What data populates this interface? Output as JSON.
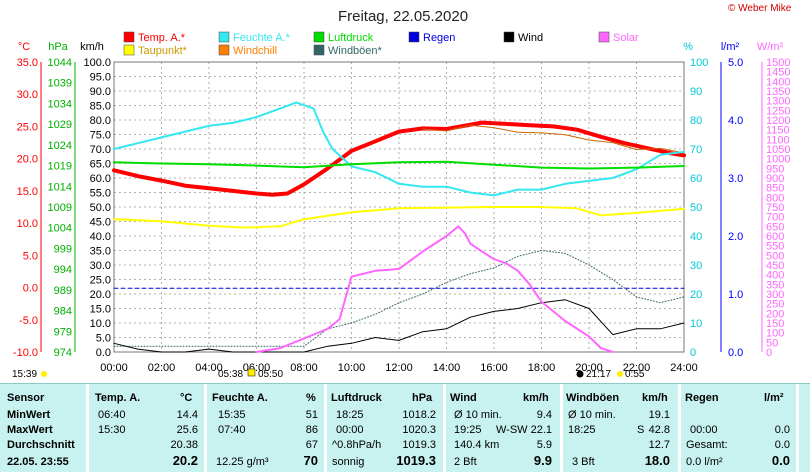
{
  "credit": "© Weber Mike",
  "chart_data": {
    "type": "line",
    "title": "Freitag, 22.05.2020",
    "x_range": [
      0,
      24
    ],
    "x_ticks": [
      "00:00",
      "02:00",
      "04:00",
      "06:00",
      "08:00",
      "10:00",
      "12:00",
      "14:00",
      "16:00",
      "18:00",
      "20:00",
      "22:00",
      "24:00"
    ],
    "axes": {
      "temp": {
        "unit": "°C",
        "range": [
          -10,
          35
        ],
        "ticks": [
          "35.0",
          "30.0",
          "25.0",
          "20.0",
          "15.0",
          "10.0",
          "5.0",
          "0.0",
          "-5.0",
          "-10.0"
        ],
        "color": "#ff0000"
      },
      "pressure": {
        "unit": "hPa",
        "range": [
          974,
          1044
        ],
        "ticks": [
          "1044",
          "1039",
          "1034",
          "1029",
          "1024",
          "1019",
          "1014",
          "1009",
          "1004",
          "999",
          "994",
          "989",
          "984",
          "979",
          "974"
        ],
        "color": "#00b000"
      },
      "speed": {
        "unit": "km/h",
        "range": [
          0,
          100
        ],
        "ticks": [
          "100.0",
          "95.0",
          "90.0",
          "85.0",
          "80.0",
          "75.0",
          "70.0",
          "65.0",
          "60.0",
          "55.0",
          "50.0",
          "45.0",
          "40.0",
          "35.0",
          "30.0",
          "25.0",
          "20.0",
          "15.0",
          "10.0",
          "5.0",
          "0.0"
        ],
        "color": "#000000"
      },
      "humidity": {
        "unit": "%",
        "range": [
          0,
          100
        ],
        "ticks": [
          "100",
          "90",
          "80",
          "70",
          "60",
          "50",
          "40",
          "30",
          "20",
          "10",
          "0"
        ],
        "color": "#00c8d8"
      },
      "rain": {
        "unit": "l/m²",
        "range": [
          0,
          5
        ],
        "ticks": [
          "5.0",
          "4.0",
          "3.0",
          "2.0",
          "1.0",
          "0.0"
        ],
        "color": "#0000ff"
      },
      "solar": {
        "unit": "W/m²",
        "range": [
          0,
          1500
        ],
        "ticks": [
          "1500",
          "1450",
          "1400",
          "1350",
          "1300",
          "1250",
          "1200",
          "1150",
          "1100",
          "1050",
          "1000",
          "950",
          "900",
          "850",
          "800",
          "750",
          "700",
          "650",
          "600",
          "550",
          "500",
          "450",
          "400",
          "350",
          "300",
          "250",
          "200",
          "150",
          "100",
          "50",
          "0"
        ],
        "color": "#ff66ff"
      }
    },
    "legend": [
      {
        "name": "Temp. A.*",
        "color": "#ff0000"
      },
      {
        "name": "Feuchte A.*",
        "color": "#33e8f0"
      },
      {
        "name": "Luftdruck",
        "color": "#00dd00"
      },
      {
        "name": "Regen",
        "color": "#0000dd"
      },
      {
        "name": "Wind",
        "color": "#000000"
      },
      {
        "name": "Solar",
        "color": "#ff66ff"
      },
      {
        "name": "Taupunkt*",
        "color": "#ffff00"
      },
      {
        "name": "Windchill",
        "color": "#ff8000"
      },
      {
        "name": "Windböen*",
        "color": "#336666"
      }
    ],
    "series": [
      {
        "name": "Temp. A.*",
        "axis": "temp",
        "color": "#ff0000",
        "width": 4,
        "points": [
          [
            0,
            18.2
          ],
          [
            1,
            17.3
          ],
          [
            2,
            16.6
          ],
          [
            3,
            15.8
          ],
          [
            4,
            15.4
          ],
          [
            5,
            15.0
          ],
          [
            6,
            14.6
          ],
          [
            6.67,
            14.4
          ],
          [
            7.3,
            14.6
          ],
          [
            8,
            16.0
          ],
          [
            9,
            18.5
          ],
          [
            10,
            21.2
          ],
          [
            11,
            22.7
          ],
          [
            12,
            24.2
          ],
          [
            13,
            24.7
          ],
          [
            14,
            24.6
          ],
          [
            15.5,
            25.6
          ],
          [
            16.5,
            25.4
          ],
          [
            17.5,
            25.2
          ],
          [
            18.5,
            25.0
          ],
          [
            19.5,
            24.5
          ],
          [
            20.5,
            23.4
          ],
          [
            21.5,
            22.4
          ],
          [
            22.5,
            21.6
          ],
          [
            23.5,
            20.8
          ],
          [
            24,
            20.5
          ]
        ]
      },
      {
        "name": "Windchill",
        "axis": "temp",
        "color": "#cc6600",
        "width": 1,
        "points": [
          [
            13,
            24.6
          ],
          [
            14,
            24.3
          ],
          [
            15,
            25.2
          ],
          [
            16,
            24.8
          ],
          [
            17,
            24.1
          ],
          [
            18,
            24.0
          ],
          [
            19,
            23.7
          ],
          [
            20,
            22.9
          ],
          [
            21,
            22.5
          ],
          [
            22,
            21.4
          ],
          [
            23,
            21.6
          ],
          [
            24,
            20.9
          ]
        ]
      },
      {
        "name": "Feuchte A.*",
        "axis": "humidity",
        "color": "#33e8f0",
        "width": 2,
        "points": [
          [
            0,
            70
          ],
          [
            1,
            72
          ],
          [
            2,
            74
          ],
          [
            3,
            76
          ],
          [
            4,
            78
          ],
          [
            5,
            79
          ],
          [
            6,
            81
          ],
          [
            7,
            84
          ],
          [
            7.67,
            86
          ],
          [
            8.4,
            84
          ],
          [
            8.8,
            76
          ],
          [
            9.2,
            70
          ],
          [
            10,
            64
          ],
          [
            11,
            62
          ],
          [
            12,
            58
          ],
          [
            13,
            57
          ],
          [
            14,
            57
          ],
          [
            15,
            55
          ],
          [
            16,
            54
          ],
          [
            17,
            56
          ],
          [
            18,
            56
          ],
          [
            19,
            58
          ],
          [
            20,
            59
          ],
          [
            21,
            60
          ],
          [
            22,
            63
          ],
          [
            23,
            68
          ],
          [
            24,
            69
          ]
        ]
      },
      {
        "name": "Luftdruck",
        "axis": "pressure",
        "color": "#00dd00",
        "width": 2,
        "points": [
          [
            0,
            1019.8
          ],
          [
            2,
            1019.5
          ],
          [
            4,
            1019.3
          ],
          [
            6,
            1019.0
          ],
          [
            8,
            1018.6
          ],
          [
            10,
            1019.3
          ],
          [
            12,
            1019.8
          ],
          [
            14,
            1019.9
          ],
          [
            16,
            1019.2
          ],
          [
            18,
            1018.5
          ],
          [
            20,
            1018.3
          ],
          [
            22,
            1018.5
          ],
          [
            24,
            1018.9
          ]
        ]
      },
      {
        "name": "Taupunkt*",
        "axis": "temp",
        "color": "#ffff00",
        "width": 2,
        "points": [
          [
            0,
            10.6
          ],
          [
            2,
            10.3
          ],
          [
            4,
            9.6
          ],
          [
            5.5,
            9.3
          ],
          [
            7,
            9.5
          ],
          [
            8,
            10.6
          ],
          [
            10,
            11.7
          ],
          [
            12,
            12.3
          ],
          [
            14,
            12.4
          ],
          [
            16,
            12.5
          ],
          [
            18,
            12.5
          ],
          [
            19.5,
            12.3
          ],
          [
            20.5,
            11.2
          ],
          [
            22,
            11.6
          ],
          [
            24,
            12.2
          ]
        ]
      },
      {
        "name": "Regen",
        "axis": "rain",
        "color": "#0000dd",
        "width": 1,
        "dashed": true,
        "points": [
          [
            0,
            1.1
          ],
          [
            24,
            1.1
          ]
        ]
      },
      {
        "name": "Windböen*",
        "axis": "speed",
        "color": "#336666",
        "width": 1,
        "dotted": true,
        "points": [
          [
            0,
            2
          ],
          [
            8,
            2
          ],
          [
            9,
            8
          ],
          [
            10,
            10
          ],
          [
            11,
            13
          ],
          [
            12,
            17
          ],
          [
            13,
            20
          ],
          [
            14,
            24
          ],
          [
            15,
            27
          ],
          [
            16,
            29
          ],
          [
            17,
            33
          ],
          [
            18,
            35
          ],
          [
            19,
            34
          ],
          [
            20,
            30
          ],
          [
            21,
            25
          ],
          [
            22,
            19
          ],
          [
            23,
            17
          ],
          [
            24,
            19
          ]
        ]
      },
      {
        "name": "Wind",
        "axis": "speed",
        "color": "#000000",
        "width": 1,
        "points": [
          [
            0,
            3
          ],
          [
            1,
            1
          ],
          [
            2,
            0
          ],
          [
            3,
            0
          ],
          [
            4,
            1
          ],
          [
            5,
            0
          ],
          [
            6,
            0
          ],
          [
            7,
            0
          ],
          [
            8,
            0
          ],
          [
            9,
            2
          ],
          [
            10,
            3
          ],
          [
            11,
            5
          ],
          [
            12,
            4
          ],
          [
            13,
            7
          ],
          [
            14,
            8
          ],
          [
            15,
            12
          ],
          [
            16,
            14
          ],
          [
            17,
            15
          ],
          [
            18,
            17
          ],
          [
            19,
            18
          ],
          [
            20,
            15
          ],
          [
            21,
            6
          ],
          [
            22,
            8
          ],
          [
            23,
            8
          ],
          [
            24,
            10
          ]
        ]
      },
      {
        "name": "Solar",
        "axis": "solar",
        "color": "#ff66ff",
        "width": 2,
        "points": [
          [
            6,
            0
          ],
          [
            7,
            20
          ],
          [
            8,
            70
          ],
          [
            9,
            120
          ],
          [
            9.5,
            170
          ],
          [
            10,
            390
          ],
          [
            11,
            420
          ],
          [
            12,
            430
          ],
          [
            13,
            520
          ],
          [
            14,
            600
          ],
          [
            14.5,
            650
          ],
          [
            14.8,
            610
          ],
          [
            15,
            560
          ],
          [
            15.5,
            520
          ],
          [
            16,
            480
          ],
          [
            16.5,
            460
          ],
          [
            17,
            420
          ],
          [
            17.5,
            350
          ],
          [
            18,
            260
          ],
          [
            18.5,
            210
          ],
          [
            19,
            160
          ],
          [
            20,
            80
          ],
          [
            20.5,
            20
          ],
          [
            21,
            0
          ]
        ]
      }
    ]
  },
  "time_marks": {
    "left": "15:39",
    "sunrise": "05:38",
    "sunset": "05:50",
    "moon": "21:17",
    "moon2": "0:55"
  },
  "table": {
    "headers": {
      "sensor": "Sensor",
      "temp": "Temp. A.",
      "temp_unit": "°C",
      "hum": "Feuchte A.",
      "hum_unit": "%",
      "press": "Luftdruck",
      "press_unit": "hPa",
      "wind": "Wind",
      "wind_unit": "km/h",
      "gust": "Windböen",
      "gust_unit": "km/h",
      "rain": "Regen",
      "rain_unit": "l/m²"
    },
    "rows": [
      {
        "label": "MinWert",
        "temp_t": "06:40",
        "temp_v": "14.4",
        "hum_t": "15:35",
        "hum_v": "51",
        "press_t": "18:25",
        "press_v": "1018.2",
        "wind_t": "Ø 10 min.",
        "wind_v": "9.4",
        "gust_t": "Ø 10 min.",
        "gust_v": "19.1",
        "rain_t": "",
        "rain_v": ""
      },
      {
        "label": "MaxWert",
        "temp_t": "15:30",
        "temp_v": "25.6",
        "hum_t": "07:40",
        "hum_v": "86",
        "press_t": "00:00",
        "press_v": "1020.3",
        "wind_t": "19:25",
        "wind_dir": "W-SW",
        "wind_v": "22.1",
        "gust_t": "18:25",
        "gust_dir": "S",
        "gust_v": "42.8",
        "rain_t": "00:00",
        "rain_v": "0.0"
      },
      {
        "label": "Durchschnitt",
        "temp_t": "",
        "temp_v": "20.38",
        "hum_t": "",
        "hum_v": "67",
        "press_t": "^0.8hPa/h",
        "press_v": "1019.3",
        "wind_t": "140.4 km",
        "wind_v": "5.9",
        "gust_t": "",
        "gust_v": "12.7",
        "rain_t": "Gesamt:",
        "rain_v": "0.0"
      }
    ],
    "current": {
      "label": "22.05. 23:55",
      "temp": "20.2",
      "hum_extra": "12.25 g/m³",
      "hum": "70",
      "press_t": "sonnig",
      "press": "1019.3",
      "wind_t": "2 Bft",
      "wind": "9.9",
      "gust_t": "3 Bft",
      "gust": "18.0",
      "rain_t": "0.0 l/m²",
      "rain": "0.0"
    }
  }
}
